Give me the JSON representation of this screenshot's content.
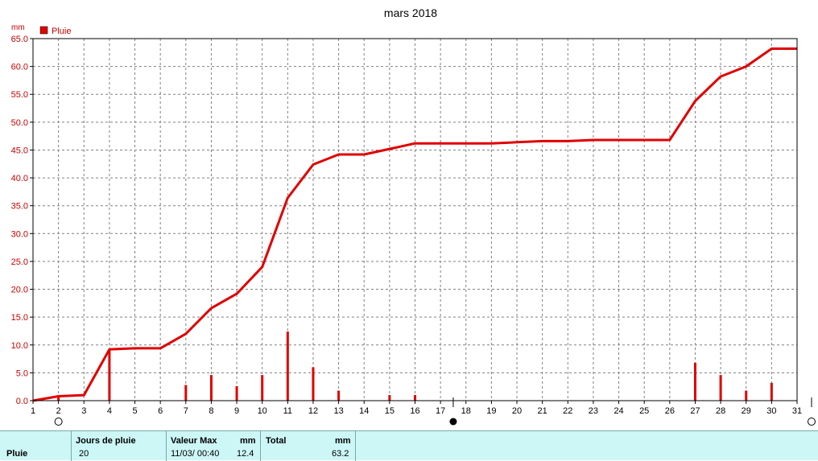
{
  "chart_data": {
    "type": "bar+line",
    "title": "mars 2018",
    "ylabel": "mm",
    "ylim": [
      0,
      65
    ],
    "ytick_labels": [
      "0.0",
      "5.0",
      "10.0",
      "15.0",
      "20.0",
      "25.0",
      "30.0",
      "35.0",
      "40.0",
      "45.0",
      "50.0",
      "55.0",
      "60.0",
      "65.0"
    ],
    "xlim": [
      1,
      31
    ],
    "x": [
      1,
      2,
      3,
      4,
      5,
      6,
      7,
      8,
      9,
      10,
      11,
      12,
      13,
      14,
      15,
      16,
      17,
      18,
      19,
      20,
      21,
      22,
      23,
      24,
      25,
      26,
      27,
      28,
      29,
      30,
      31
    ],
    "grid": true,
    "legend": {
      "position": "top-left",
      "label": "Pluie"
    },
    "colors": {
      "series": "#e00000",
      "grid": "#808080",
      "axis": "#000000",
      "text": "#cc0000"
    },
    "series": [
      {
        "name": "Pluie",
        "kind": "bar",
        "values": [
          0,
          0.8,
          0,
          9.0,
          0,
          0,
          2.8,
          4.6,
          2.6,
          4.6,
          12.4,
          6.0,
          1.8,
          0,
          1.0,
          1.0,
          0,
          0,
          0,
          0,
          0,
          0,
          0,
          0,
          0,
          0,
          6.8,
          4.6,
          1.8,
          3.2,
          0
        ]
      },
      {
        "name": "Pluie",
        "kind": "line",
        "values": [
          0,
          0.8,
          1.0,
          9.2,
          9.4,
          9.4,
          12.0,
          16.6,
          19.2,
          24.0,
          36.4,
          42.4,
          44.2,
          44.2,
          45.2,
          46.2,
          46.2,
          46.2,
          46.2,
          46.4,
          46.6,
          46.6,
          46.8,
          46.8,
          46.8,
          46.8,
          53.8,
          58.2,
          60.0,
          63.2,
          63.2
        ]
      }
    ],
    "moon_phases": [
      {
        "day": 2,
        "phase": "full"
      },
      {
        "day": 17.5,
        "phase": "new"
      },
      {
        "day": 31.6,
        "phase": "full"
      }
    ]
  },
  "summary": {
    "row_label": "Pluie",
    "rain_days_header": "Jours de pluie",
    "rain_days_value": "20",
    "max_header": "Valeur Max",
    "max_unit": "mm",
    "max_date": "11/03/  00:40",
    "max_value": "12.4",
    "total_header": "Total",
    "total_unit": "mm",
    "total_value": "63.2"
  }
}
